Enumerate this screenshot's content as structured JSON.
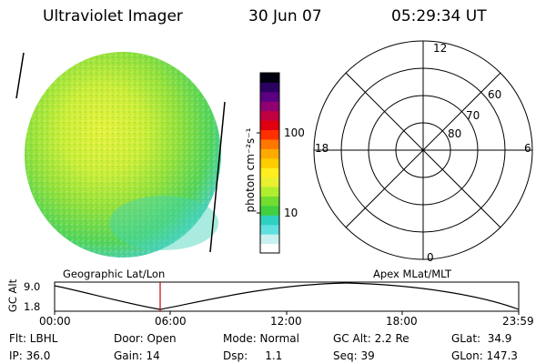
{
  "header": {
    "title": "Ultraviolet Imager",
    "date": "30 Jun 07",
    "time": "05:29:34 UT"
  },
  "colorbar": {
    "unit_label": "photon cm⁻²s⁻¹",
    "ticks": [
      "100",
      "10"
    ],
    "colors": [
      "#ffffff",
      "#c8f0f0",
      "#60e0e0",
      "#30d0c0",
      "#40d040",
      "#70dd30",
      "#b0ee30",
      "#e8f030",
      "#ffee20",
      "#ffcc00",
      "#ffaa00",
      "#ff7700",
      "#ff3000",
      "#e00010",
      "#c00040",
      "#900070",
      "#5a0080",
      "#2a0060",
      "#000010"
    ]
  },
  "polar": {
    "mlt_labels": {
      "top": "12",
      "left": "18",
      "right": "6",
      "bottom": "0"
    },
    "lat_labels": [
      "60",
      "70",
      "80"
    ]
  },
  "timeline": {
    "left_title": "Geographic Lat/Lon",
    "right_title": "Apex MLat/MLT",
    "yaxis_label": "GC Alt",
    "ytick_top": "9.0",
    "ytick_bottom": "1.8",
    "xticks": [
      "00:00",
      "06:00",
      "12:00",
      "18:00",
      "23:59"
    ],
    "cursor_color": "#cc0000"
  },
  "status": {
    "flt": "Flt: LBHL",
    "ip": "IP: 36.0",
    "door": "Door: Open",
    "gain": "Gain: 14",
    "mode": "Mode: Normal",
    "dsp": "Dsp:     1.1",
    "gcalt": "GC Alt: 2.2 Re",
    "seq": "Seq: 39",
    "glat": "GLat:  34.9",
    "glon": "GLon: 147.3"
  }
}
